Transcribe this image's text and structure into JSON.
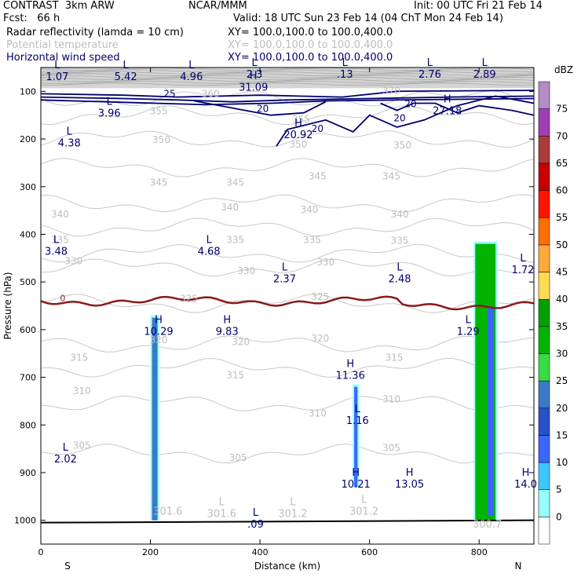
{
  "header": {
    "product": "CONTRAST  3km ARW",
    "fcst": "Fcst:   66 h",
    "source": "NCAR/MMM",
    "init": "Init: 00 UTC Fri 21 Feb 14",
    "valid": "Valid: 18 UTC Sun 23 Feb 14 (04 ChT Mon 24 Feb 14)",
    "fields": [
      {
        "name": "Radar reflectivity (lamda = 10 cm)",
        "xy": "XY= 100.0,100.0 to 100.0,400.0",
        "color": "#000000"
      },
      {
        "name": "Potential temperature",
        "xy": "XY= 100.0,100.0 to 100.0,400.0",
        "color": "#bdbdbd"
      },
      {
        "name": "Horizontal wind speed",
        "xy": "XY= 100.0,100.0 to 100.0,400.0",
        "color": "#00006e"
      }
    ]
  },
  "chart_data": {
    "type": "heatmap",
    "title": "Cross section: radar reflectivity, potential temperature, horizontal wind speed",
    "xlabel": "Distance (km)",
    "ylabel": "Pressure (hPa)",
    "xlim": [
      0,
      900
    ],
    "ylim": [
      1050,
      50
    ],
    "x_ticks": [
      0,
      200,
      400,
      600,
      800
    ],
    "y_ticks": [
      100,
      200,
      300,
      400,
      500,
      600,
      700,
      800,
      900,
      1000
    ],
    "endpoints": {
      "left": "S",
      "right": "N"
    },
    "colorbar": {
      "unit": "dBZ",
      "levels": [
        0,
        5,
        10,
        15,
        20,
        25,
        30,
        35,
        40,
        45,
        50,
        55,
        60,
        65,
        70,
        75
      ],
      "colors": [
        "#ffffff",
        "#96ffff",
        "#3cc8ff",
        "#3c64ff",
        "#2850c8",
        "#3c78c8",
        "#37dc46",
        "#00b400",
        "#00a000",
        "#ffdc50",
        "#ffaa3c",
        "#ff6e00",
        "#ff1400",
        "#c80000",
        "#aa3c3c",
        "#a03cb4",
        "#b48cc8"
      ]
    },
    "theta_labels": [
      {
        "x": 310,
        "p": 112,
        "text": "360"
      },
      {
        "x": 640,
        "p": 105,
        "text": "370"
      },
      {
        "x": 215,
        "p": 148,
        "text": "355"
      },
      {
        "x": 475,
        "p": 165,
        "text": "355"
      },
      {
        "x": 220,
        "p": 208,
        "text": "350"
      },
      {
        "x": 660,
        "p": 220,
        "text": "350"
      },
      {
        "x": 470,
        "p": 218,
        "text": "350"
      },
      {
        "x": 505,
        "p": 285,
        "text": "345"
      },
      {
        "x": 215,
        "p": 298,
        "text": "345"
      },
      {
        "x": 355,
        "p": 298,
        "text": "345"
      },
      {
        "x": 640,
        "p": 285,
        "text": "345"
      },
      {
        "x": 35,
        "p": 365,
        "text": "340"
      },
      {
        "x": 345,
        "p": 350,
        "text": "340"
      },
      {
        "x": 490,
        "p": 355,
        "text": "340"
      },
      {
        "x": 655,
        "p": 365,
        "text": "340"
      },
      {
        "x": 35,
        "p": 418,
        "text": "335"
      },
      {
        "x": 355,
        "p": 418,
        "text": "335"
      },
      {
        "x": 495,
        "p": 418,
        "text": "335"
      },
      {
        "x": 655,
        "p": 420,
        "text": "335"
      },
      {
        "x": 60,
        "p": 463,
        "text": "330"
      },
      {
        "x": 375,
        "p": 483,
        "text": "330"
      },
      {
        "x": 520,
        "p": 465,
        "text": "330"
      },
      {
        "x": 270,
        "p": 542,
        "text": "325"
      },
      {
        "x": 510,
        "p": 538,
        "text": "325"
      },
      {
        "x": 215,
        "p": 628,
        "text": "320"
      },
      {
        "x": 365,
        "p": 632,
        "text": "320"
      },
      {
        "x": 510,
        "p": 625,
        "text": "320"
      },
      {
        "x": 70,
        "p": 665,
        "text": "315"
      },
      {
        "x": 355,
        "p": 702,
        "text": "315"
      },
      {
        "x": 645,
        "p": 665,
        "text": "315"
      },
      {
        "x": 75,
        "p": 735,
        "text": "310"
      },
      {
        "x": 505,
        "p": 782,
        "text": "310"
      },
      {
        "x": 640,
        "p": 753,
        "text": "310"
      },
      {
        "x": 75,
        "p": 850,
        "text": "305"
      },
      {
        "x": 360,
        "p": 875,
        "text": "305"
      },
      {
        "x": 640,
        "p": 855,
        "text": "305"
      }
    ],
    "wind_labels": [
      {
        "x": 235,
        "p": 112,
        "text": "25"
      },
      {
        "x": 405,
        "p": 143,
        "text": "20"
      },
      {
        "x": 505,
        "p": 185,
        "text": "20"
      },
      {
        "x": 675,
        "p": 133,
        "text": "20"
      },
      {
        "x": 655,
        "p": 163,
        "text": "20"
      }
    ],
    "freezing_label": {
      "x": 40,
      "p": 540,
      "text": "0"
    },
    "hl_labels": [
      {
        "x": 30,
        "p": 73,
        "letter": "L",
        "value": "1.07",
        "color": "#00006e"
      },
      {
        "x": 155,
        "p": 73,
        "letter": "L",
        "value": "5.42",
        "color": "#00006e"
      },
      {
        "x": 275,
        "p": 73,
        "letter": "L",
        "value": "4.96",
        "color": "#00006e"
      },
      {
        "x": 390,
        "p": 68,
        "letter": "L",
        "value": "2.3",
        "color": "#00006e"
      },
      {
        "x": 555,
        "p": 68,
        "letter": "L",
        "value": ".13",
        "color": "#00006e"
      },
      {
        "x": 710,
        "p": 68,
        "letter": "L",
        "value": "2.76",
        "color": "#00006e"
      },
      {
        "x": 810,
        "p": 68,
        "letter": "L",
        "value": "2.89",
        "color": "#00006e"
      },
      {
        "x": 388,
        "p": 95,
        "letter": "H",
        "value": "31.09",
        "color": "#00006e"
      },
      {
        "x": 125,
        "p": 150,
        "letter": "L",
        "value": "3.96",
        "color": "#00006e"
      },
      {
        "x": 742,
        "p": 145,
        "letter": "H",
        "value": "27.18",
        "color": "#00006e"
      },
      {
        "x": 470,
        "p": 195,
        "letter": "H",
        "value": "20.92",
        "color": "#00006e"
      },
      {
        "x": 52,
        "p": 212,
        "letter": "L",
        "value": "4.38",
        "color": "#00006e"
      },
      {
        "x": 28,
        "p": 440,
        "letter": "L",
        "value": "3.48",
        "color": "#00006e"
      },
      {
        "x": 307,
        "p": 440,
        "letter": "L",
        "value": "4.68",
        "color": "#00006e"
      },
      {
        "x": 880,
        "p": 478,
        "letter": "L",
        "value": "1.72",
        "color": "#00006e"
      },
      {
        "x": 445,
        "p": 497,
        "letter": "L",
        "value": "2.37",
        "color": "#00006e"
      },
      {
        "x": 655,
        "p": 497,
        "letter": "L",
        "value": "2.48",
        "color": "#00006e"
      },
      {
        "x": 215,
        "p": 608,
        "letter": "H",
        "value": "10.29",
        "color": "#00006e"
      },
      {
        "x": 340,
        "p": 608,
        "letter": "H",
        "value": "9.83",
        "color": "#00006e"
      },
      {
        "x": 780,
        "p": 608,
        "letter": "L",
        "value": "1.29",
        "color": "#00006e"
      },
      {
        "x": 565,
        "p": 700,
        "letter": "H",
        "value": "11.36",
        "color": "#00006e"
      },
      {
        "x": 578,
        "p": 795,
        "letter": "L",
        "value": "1.16",
        "color": "#00006e"
      },
      {
        "x": 45,
        "p": 875,
        "letter": "L",
        "value": "2.02",
        "color": "#00006e"
      },
      {
        "x": 575,
        "p": 928,
        "letter": "H",
        "value": "10.21",
        "color": "#00006e"
      },
      {
        "x": 673,
        "p": 928,
        "letter": "H",
        "value": "13.05",
        "color": "#00006e"
      },
      {
        "x": 885,
        "p": 928,
        "letter": "H",
        "value": "14.0",
        "color": "#00006e"
      },
      {
        "x": 232,
        "p": 985,
        "letter": "",
        "value": "301.6",
        "color": "#bdbdbd"
      },
      {
        "x": 330,
        "p": 990,
        "letter": "L",
        "value": "301.6",
        "color": "#bdbdbd"
      },
      {
        "x": 460,
        "p": 990,
        "letter": "L",
        "value": "301.2",
        "color": "#bdbdbd"
      },
      {
        "x": 590,
        "p": 985,
        "letter": "L",
        "value": "301.2",
        "color": "#bdbdbd"
      },
      {
        "x": 392,
        "p": 1012,
        "letter": "L",
        "value": ".09",
        "color": "#00006e"
      },
      {
        "x": 815,
        "p": 1012,
        "letter": "",
        "value": "300.7",
        "color": "#bdbdbd"
      }
    ],
    "reflectivity_cells": [
      {
        "x0": 203,
        "x1": 213,
        "ptop": 575,
        "pbot": 1000,
        "dbz": 20
      },
      {
        "x0": 572,
        "x1": 578,
        "ptop": 720,
        "pbot": 930,
        "dbz": 10
      },
      {
        "x0": 793,
        "x1": 830,
        "ptop": 420,
        "pbot": 1000,
        "dbz": 30
      }
    ]
  }
}
